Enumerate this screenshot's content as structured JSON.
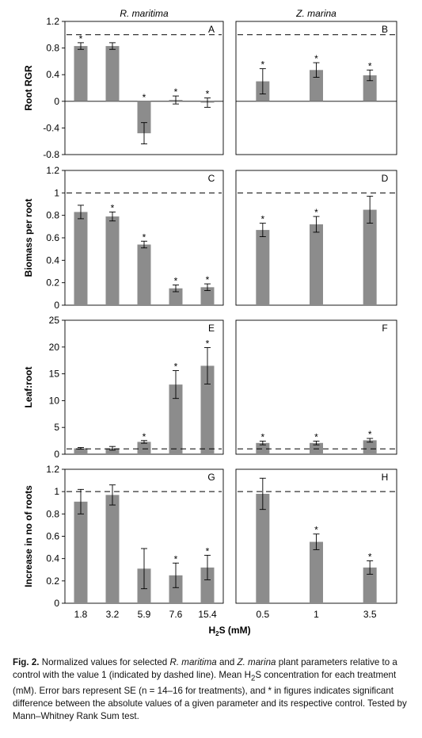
{
  "figure": {
    "col_titles": [
      "R. maritima",
      "Z. marina"
    ],
    "xlabel_main": "H",
    "xlabel_sub": "2",
    "xlabel_rest": "S (mM)",
    "x_left": [
      "1.8",
      "3.2",
      "5.9",
      "7.6",
      "15.4"
    ],
    "x_right": [
      "0.5",
      "1",
      "3.5"
    ],
    "bar_color": "#8c8c8c",
    "rows": [
      {
        "ylabel": "Root RGR",
        "ylim": [
          -0.8,
          1.2
        ],
        "ticks": [
          "1.2",
          "0.8",
          "0.4",
          "0",
          "-0.4",
          "-0.8"
        ],
        "tick_vals": [
          1.2,
          0.8,
          0.4,
          0,
          -0.4,
          -0.8
        ],
        "zero_axis": true
      },
      {
        "ylabel": "Biomass per root",
        "ylim": [
          0,
          1.2
        ],
        "ticks": [
          "1.2",
          "1",
          "0.8",
          "0.6",
          "0.4",
          "0.2",
          "0"
        ],
        "tick_vals": [
          1.2,
          1,
          0.8,
          0.6,
          0.4,
          0.2,
          0
        ],
        "zero_axis": false
      },
      {
        "ylabel": "Leaf:root",
        "ylim": [
          0,
          25
        ],
        "ticks": [
          "25",
          "20",
          "15",
          "10",
          "5",
          "0"
        ],
        "tick_vals": [
          25,
          20,
          15,
          10,
          5,
          0
        ],
        "zero_axis": false
      },
      {
        "ylabel": "Increase in no of roots",
        "ylim": [
          0,
          1.2
        ],
        "ticks": [
          "1.2",
          "1",
          "0.8",
          "0.6",
          "0.4",
          "0.2",
          "0"
        ],
        "tick_vals": [
          1.2,
          1,
          0.8,
          0.6,
          0.4,
          0.2,
          0
        ],
        "zero_axis": false
      }
    ],
    "panel_letters": [
      [
        "A",
        "B"
      ],
      [
        "C",
        "D"
      ],
      [
        "E",
        "F"
      ],
      [
        "G",
        "H"
      ]
    ]
  },
  "chart_data": [
    {
      "type": "bar",
      "panel": "A",
      "categories": [
        "1.8",
        "3.2",
        "5.9",
        "7.6",
        "15.4"
      ],
      "values": [
        0.83,
        0.83,
        -0.48,
        0.02,
        -0.02
      ],
      "errors": [
        0.05,
        0.05,
        0.16,
        0.06,
        0.07
      ],
      "significant": [
        true,
        false,
        true,
        true,
        true
      ],
      "reference_line": 1,
      "ylim": [
        -0.8,
        1.2
      ],
      "ylabel": "Root RGR"
    },
    {
      "type": "bar",
      "panel": "B",
      "categories": [
        "0.5",
        "1",
        "3.5"
      ],
      "values": [
        0.3,
        0.47,
        0.39
      ],
      "errors": [
        0.19,
        0.11,
        0.08
      ],
      "significant": [
        true,
        true,
        true
      ],
      "reference_line": 1,
      "ylim": [
        -0.8,
        1.2
      ],
      "ylabel": "Root RGR"
    },
    {
      "type": "bar",
      "panel": "C",
      "categories": [
        "1.8",
        "3.2",
        "5.9",
        "7.6",
        "15.4"
      ],
      "values": [
        0.83,
        0.79,
        0.54,
        0.15,
        0.16
      ],
      "errors": [
        0.06,
        0.04,
        0.03,
        0.03,
        0.03
      ],
      "significant": [
        false,
        true,
        true,
        true,
        true
      ],
      "reference_line": 1,
      "ylim": [
        0,
        1.2
      ],
      "ylabel": "Biomass per root"
    },
    {
      "type": "bar",
      "panel": "D",
      "categories": [
        "0.5",
        "1",
        "3.5"
      ],
      "values": [
        0.67,
        0.72,
        0.85
      ],
      "errors": [
        0.06,
        0.07,
        0.12
      ],
      "significant": [
        true,
        true,
        false
      ],
      "reference_line": 1,
      "ylim": [
        0,
        1.2
      ],
      "ylabel": "Biomass per root"
    },
    {
      "type": "bar",
      "panel": "E",
      "categories": [
        "1.8",
        "3.2",
        "5.9",
        "7.6",
        "15.4"
      ],
      "values": [
        1.1,
        1.1,
        2.3,
        13.0,
        16.5
      ],
      "errors": [
        0.15,
        0.35,
        0.25,
        2.6,
        3.4
      ],
      "significant": [
        false,
        false,
        true,
        true,
        true
      ],
      "reference_line": 1,
      "ylim": [
        0,
        25
      ],
      "ylabel": "Leaf:root"
    },
    {
      "type": "bar",
      "panel": "F",
      "categories": [
        "0.5",
        "1",
        "3.5"
      ],
      "values": [
        2.1,
        2.1,
        2.6
      ],
      "errors": [
        0.35,
        0.35,
        0.35
      ],
      "significant": [
        true,
        true,
        true
      ],
      "reference_line": 1,
      "ylim": [
        0,
        25
      ],
      "ylabel": "Leaf:root"
    },
    {
      "type": "bar",
      "panel": "G",
      "categories": [
        "1.8",
        "3.2",
        "5.9",
        "7.6",
        "15.4"
      ],
      "values": [
        0.91,
        0.97,
        0.31,
        0.25,
        0.32
      ],
      "errors": [
        0.11,
        0.09,
        0.18,
        0.11,
        0.11
      ],
      "significant": [
        false,
        false,
        false,
        true,
        true
      ],
      "reference_line": 1,
      "ylim": [
        0,
        1.2
      ],
      "ylabel": "Increase in no of roots"
    },
    {
      "type": "bar",
      "panel": "H",
      "categories": [
        "0.5",
        "1",
        "3.5"
      ],
      "values": [
        0.98,
        0.55,
        0.32
      ],
      "errors": [
        0.14,
        0.07,
        0.06
      ],
      "significant": [
        false,
        true,
        true
      ],
      "reference_line": 1,
      "ylim": [
        0,
        1.2
      ],
      "ylabel": "Increase in no of roots"
    }
  ],
  "caption": {
    "label": "Fig. 2.",
    "p1": " Normalized values for selected ",
    "sp1": "R. maritima",
    "p2": " and ",
    "sp2": "Z. marina",
    "p3": " plant parameters relative to a control with the value 1 (indicated by dashed line). Mean H",
    "sub": "2",
    "p4": "S concentration for each treatment (mM). Error bars represent SE (n = 14–16 for treatments), and * in figures indicates significant difference between the absolute values of a given parameter and its respective control. Tested by Mann–Whitney Rank Sum test."
  }
}
